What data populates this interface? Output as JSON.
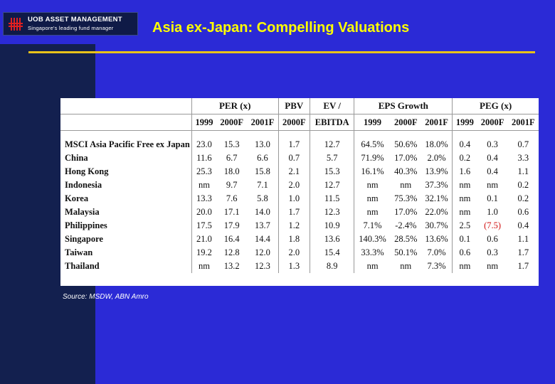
{
  "logo": {
    "title": "UOB ASSET MANAGEMENT",
    "subtitle": "Singapore's leading fund manager",
    "icon": "uob-logo-icon"
  },
  "header": {
    "title": "Asia ex-Japan: Compelling Valuations"
  },
  "colors": {
    "background": "#2b2ad6",
    "sidebar": "#13204f",
    "title_text": "#ffff00",
    "rule": "#e8c21a",
    "negative_value": "#d01010"
  },
  "table": {
    "group_headers": [
      "PER (x)",
      "PBV",
      "EV /",
      "EPS Growth",
      "PEG (x)"
    ],
    "sub_headers": [
      "1999",
      "2000F",
      "2001F",
      "2000F",
      "EBITDA",
      "1999",
      "2000F",
      "2001F",
      "1999",
      "2000F",
      "2001F"
    ],
    "rows": [
      {
        "market": "MSCI Asia Pacific Free ex Japan",
        "values": [
          "23.0",
          "15.3",
          "13.0",
          "1.7",
          "12.7",
          "64.5%",
          "50.6%",
          "18.0%",
          "0.4",
          "0.3",
          "0.7"
        ]
      },
      {
        "market": "China",
        "values": [
          "11.6",
          "6.7",
          "6.6",
          "0.7",
          "5.7",
          "71.9%",
          "17.0%",
          "2.0%",
          "0.2",
          "0.4",
          "3.3"
        ]
      },
      {
        "market": "Hong Kong",
        "values": [
          "25.3",
          "18.0",
          "15.8",
          "2.1",
          "15.3",
          "16.1%",
          "40.3%",
          "13.9%",
          "1.6",
          "0.4",
          "1.1"
        ]
      },
      {
        "market": "Indonesia",
        "values": [
          "nm",
          "9.7",
          "7.1",
          "2.0",
          "12.7",
          "nm",
          "nm",
          "37.3%",
          "nm",
          "nm",
          "0.2"
        ]
      },
      {
        "market": "Korea",
        "values": [
          "13.3",
          "7.6",
          "5.8",
          "1.0",
          "11.5",
          "nm",
          "75.3%",
          "32.1%",
          "nm",
          "0.1",
          "0.2"
        ]
      },
      {
        "market": "Malaysia",
        "values": [
          "20.0",
          "17.1",
          "14.0",
          "1.7",
          "12.3",
          "nm",
          "17.0%",
          "22.0%",
          "nm",
          "1.0",
          "0.6"
        ]
      },
      {
        "market": "Philippines",
        "values": [
          "17.5",
          "17.9",
          "13.7",
          "1.2",
          "10.9",
          "7.1%",
          "-2.4%",
          "30.7%",
          "2.5",
          "(7.5)",
          "0.4"
        ]
      },
      {
        "market": "Singapore",
        "values": [
          "21.0",
          "16.4",
          "14.4",
          "1.8",
          "13.6",
          "140.3%",
          "28.5%",
          "13.6%",
          "0.1",
          "0.6",
          "1.1"
        ]
      },
      {
        "market": "Taiwan",
        "values": [
          "19.2",
          "12.8",
          "12.0",
          "2.0",
          "15.4",
          "33.3%",
          "50.1%",
          "7.0%",
          "0.6",
          "0.3",
          "1.7"
        ]
      },
      {
        "market": "Thailand",
        "values": [
          "nm",
          "13.2",
          "12.3",
          "1.3",
          "8.9",
          "nm",
          "nm",
          "7.3%",
          "nm",
          "nm",
          "1.7"
        ]
      }
    ]
  },
  "source": "Source: MSDW, ABN Amro"
}
